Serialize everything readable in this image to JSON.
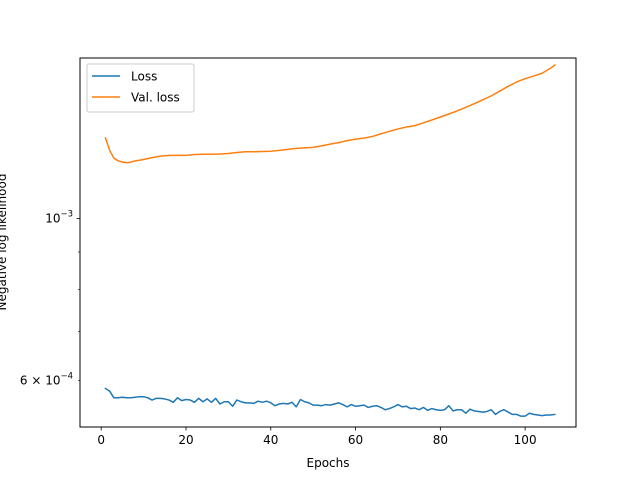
{
  "chart_data": {
    "type": "line",
    "xlabel": "Epochs",
    "ylabel": "Negative log likelihood",
    "y_scale": "log",
    "xlim": [
      -5,
      112
    ],
    "ylim": [
      0.000518,
      0.00166
    ],
    "grid": false,
    "legend": "upper-left",
    "x_ticks": [
      {
        "value": 0,
        "label": "0"
      },
      {
        "value": 20,
        "label": "20"
      },
      {
        "value": 40,
        "label": "40"
      },
      {
        "value": 60,
        "label": "60"
      },
      {
        "value": 80,
        "label": "80"
      },
      {
        "value": 100,
        "label": "100"
      }
    ],
    "y_major_ticks": [
      {
        "value": 0.001,
        "base": "10",
        "exp": "−3"
      }
    ],
    "y_minor_ticks": [
      {
        "value": 0.0006,
        "coef": "6",
        "base": "10",
        "exp": "−4"
      },
      {
        "value": 0.0007
      },
      {
        "value": 0.0008
      },
      {
        "value": 0.0009
      }
    ],
    "series": [
      {
        "name": "Loss",
        "color": "#1f77b4",
        "x": [
          1,
          2,
          3,
          4,
          5,
          6,
          7,
          8,
          9,
          10,
          11,
          12,
          13,
          14,
          15,
          16,
          17,
          18,
          19,
          20,
          21,
          22,
          23,
          24,
          25,
          26,
          27,
          28,
          29,
          30,
          31,
          32,
          33,
          34,
          35,
          36,
          37,
          38,
          39,
          40,
          41,
          42,
          43,
          44,
          45,
          46,
          47,
          48,
          49,
          50,
          51,
          52,
          53,
          54,
          55,
          56,
          57,
          58,
          59,
          60,
          61,
          62,
          63,
          64,
          65,
          66,
          67,
          68,
          69,
          70,
          71,
          72,
          73,
          74,
          75,
          76,
          77,
          78,
          79,
          80,
          81,
          82,
          83,
          84,
          85,
          86,
          87,
          88,
          89,
          90,
          91,
          92,
          93,
          94,
          95,
          96,
          97,
          98,
          99,
          100,
          101,
          102,
          103,
          104,
          105,
          106,
          107
        ],
        "y": [
          0.000585,
          0.00058,
          0.000568,
          0.000568,
          0.000569,
          0.000568,
          0.000568,
          0.000569,
          0.00057,
          0.00057,
          0.000568,
          0.000564,
          0.000567,
          0.000567,
          0.000566,
          0.000564,
          0.00056,
          0.000568,
          0.000563,
          0.000565,
          0.000564,
          0.00056,
          0.000567,
          0.000561,
          0.000566,
          0.00056,
          0.000567,
          0.000557,
          0.000561,
          0.000561,
          0.000553,
          0.000564,
          0.000561,
          0.000559,
          0.000559,
          0.000558,
          0.000562,
          0.00056,
          0.000562,
          0.000559,
          0.000554,
          0.000557,
          0.000558,
          0.000557,
          0.00056,
          0.000552,
          0.000565,
          0.000561,
          0.000559,
          0.000555,
          0.000555,
          0.000554,
          0.000556,
          0.000555,
          0.000557,
          0.000559,
          0.000556,
          0.000552,
          0.000556,
          0.000553,
          0.000554,
          0.000555,
          0.000551,
          0.000553,
          0.000554,
          0.000551,
          0.000547,
          0.000549,
          0.000552,
          0.000556,
          0.000552,
          0.000553,
          0.000549,
          0.00055,
          0.000547,
          0.000551,
          0.000546,
          0.000549,
          0.000547,
          0.000546,
          0.000547,
          0.000554,
          0.000545,
          0.000547,
          0.000547,
          0.000541,
          0.000548,
          0.000545,
          0.000544,
          0.000543,
          0.000544,
          0.000547,
          0.000539,
          0.000544,
          0.000547,
          0.000543,
          0.000539,
          0.000539,
          0.000536,
          0.000536,
          0.000541,
          0.000539,
          0.000538,
          0.000537,
          0.000538,
          0.000538,
          0.000539
        ]
      },
      {
        "name": "Val. loss",
        "color": "#ff7f0e",
        "x": [
          1,
          2,
          3,
          4,
          5,
          6,
          7,
          8,
          9,
          10,
          12,
          14,
          16,
          18,
          20,
          22,
          24,
          26,
          28,
          30,
          32,
          34,
          36,
          38,
          40,
          42,
          44,
          46,
          48,
          50,
          52,
          54,
          56,
          58,
          60,
          62,
          64,
          66,
          68,
          70,
          72,
          74,
          76,
          78,
          80,
          82,
          84,
          86,
          88,
          90,
          92,
          94,
          96,
          98,
          100,
          102,
          104,
          106,
          107
        ],
        "y": [
          0.00129,
          0.00124,
          0.00121,
          0.0012,
          0.001195,
          0.001193,
          0.001195,
          0.0012,
          0.001202,
          0.001205,
          0.001212,
          0.001218,
          0.001221,
          0.001221,
          0.001221,
          0.001224,
          0.001225,
          0.001225,
          0.001226,
          0.001228,
          0.001232,
          0.001235,
          0.001235,
          0.001236,
          0.001237,
          0.00124,
          0.001244,
          0.001248,
          0.00125,
          0.001252,
          0.001258,
          0.001265,
          0.001271,
          0.001279,
          0.001285,
          0.001289,
          0.001296,
          0.001307,
          0.001317,
          0.001327,
          0.001335,
          0.001341,
          0.001353,
          0.001365,
          0.001378,
          0.001391,
          0.001405,
          0.001421,
          0.001437,
          0.001455,
          0.001473,
          0.001495,
          0.001518,
          0.001539,
          0.001555,
          0.001568,
          0.001582,
          0.001607,
          0.001624
        ]
      }
    ]
  }
}
